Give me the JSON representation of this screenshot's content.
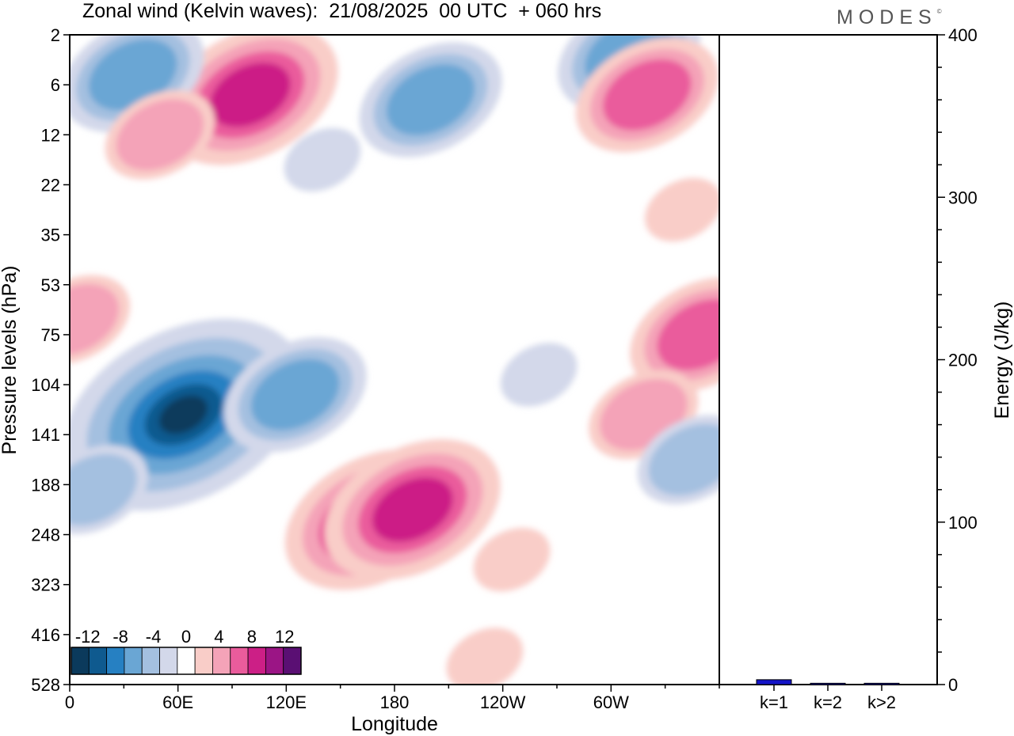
{
  "title": "Zonal wind (Kelvin waves):  21/08/2025  00 UTC  + 060 hrs",
  "brand": "MODES",
  "brand_mark": "©",
  "colors": {
    "neg": [
      "#0b3a5c",
      "#0f5a8f",
      "#2680c2",
      "#6aa6d4",
      "#a4c0e0",
      "#d3d8ea"
    ],
    "zero": "#ffffff",
    "pos": [
      "#f9cdc8",
      "#f4a3b8",
      "#ea5c9c",
      "#cc1f86",
      "#9b1585",
      "#5a0f73"
    ],
    "bar": "#1414c8"
  },
  "chart_data": [
    {
      "type": "heatmap",
      "title": "Zonal wind (Kelvin waves):  21/08/2025  00 UTC  + 060 hrs",
      "xlabel": "Longitude",
      "ylabel": "Pressure levels (hPa)",
      "x_ticks": [
        "0",
        "60E",
        "120E",
        "180",
        "120W",
        "60W"
      ],
      "x_tick_values": [
        0,
        60,
        120,
        180,
        240,
        300
      ],
      "xlim": [
        0,
        360
      ],
      "y_ticks": [
        "2",
        "6",
        "12",
        "22",
        "35",
        "53",
        "75",
        "104",
        "141",
        "188",
        "248",
        "323",
        "416",
        "528"
      ],
      "colorbar": {
        "labels": [
          "-12",
          "-8",
          "-4",
          "0",
          "4",
          "8",
          "12"
        ],
        "label_values": [
          -12,
          -8,
          -4,
          0,
          4,
          8,
          12
        ],
        "levels": [
          -14,
          -12,
          -10,
          -8,
          -6,
          -4,
          -2,
          2,
          4,
          6,
          8,
          10,
          12,
          14
        ]
      },
      "features": [
        {
          "lon": 63,
          "level": 7.6,
          "value": -12,
          "sign": "negative",
          "rank": 6
        },
        {
          "lon": 168,
          "level": 9.7,
          "value": 10,
          "sign": "positive",
          "rank": 4
        },
        {
          "lon": 190,
          "level": 9.5,
          "value": 10,
          "sign": "positive",
          "rank": 4
        },
        {
          "lon": 100,
          "level": 1.2,
          "value": 9,
          "sign": "positive",
          "rank": 4
        },
        {
          "lon": 35,
          "level": 0.8,
          "value": -6,
          "sign": "negative",
          "rank": 3
        },
        {
          "lon": 350,
          "level": 6.0,
          "value": 7,
          "sign": "positive",
          "rank": 3
        },
        {
          "lon": 13,
          "level": 9.1,
          "value": -5,
          "sign": "negative",
          "rank": 2
        },
        {
          "lon": 125,
          "level": 7.2,
          "value": -6,
          "sign": "negative",
          "rank": 3
        },
        {
          "lon": 318,
          "level": 7.6,
          "value": 6,
          "sign": "positive",
          "rank": 2
        },
        {
          "lon": 3,
          "level": 5.7,
          "value": 6,
          "sign": "positive",
          "rank": 2
        },
        {
          "lon": 50,
          "level": 2.0,
          "value": 6,
          "sign": "positive",
          "rank": 2
        },
        {
          "lon": 200,
          "level": 1.3,
          "value": -6,
          "sign": "negative",
          "rank": 3
        },
        {
          "lon": 310,
          "level": 0.4,
          "value": -6,
          "sign": "negative",
          "rank": 3
        },
        {
          "lon": 320,
          "level": 1.2,
          "value": 6,
          "sign": "positive",
          "rank": 3
        },
        {
          "lon": 230,
          "level": 12.5,
          "value": 3,
          "sign": "positive",
          "rank": 1
        },
        {
          "lon": 340,
          "level": 3.5,
          "value": 3,
          "sign": "positive",
          "rank": 1
        },
        {
          "lon": 345,
          "level": 8.5,
          "value": -4,
          "sign": "negative",
          "rank": 2
        },
        {
          "lon": 245,
          "level": 10.5,
          "value": 3,
          "sign": "positive",
          "rank": 1
        },
        {
          "lon": 260,
          "level": 6.8,
          "value": -2,
          "sign": "negative",
          "rank": 1
        },
        {
          "lon": 140,
          "level": 2.5,
          "value": -2,
          "sign": "negative",
          "rank": 1
        }
      ]
    },
    {
      "type": "bar",
      "ylabel": "Energy (J/kg)",
      "categories": [
        "k=1",
        "k=2",
        "k>2"
      ],
      "values": [
        3,
        0.8,
        0.8
      ],
      "ylim": [
        0,
        400
      ],
      "y_ticks": [
        "0",
        "100",
        "200",
        "300",
        "400"
      ],
      "y_tick_values": [
        0,
        100,
        200,
        300,
        400
      ]
    }
  ]
}
